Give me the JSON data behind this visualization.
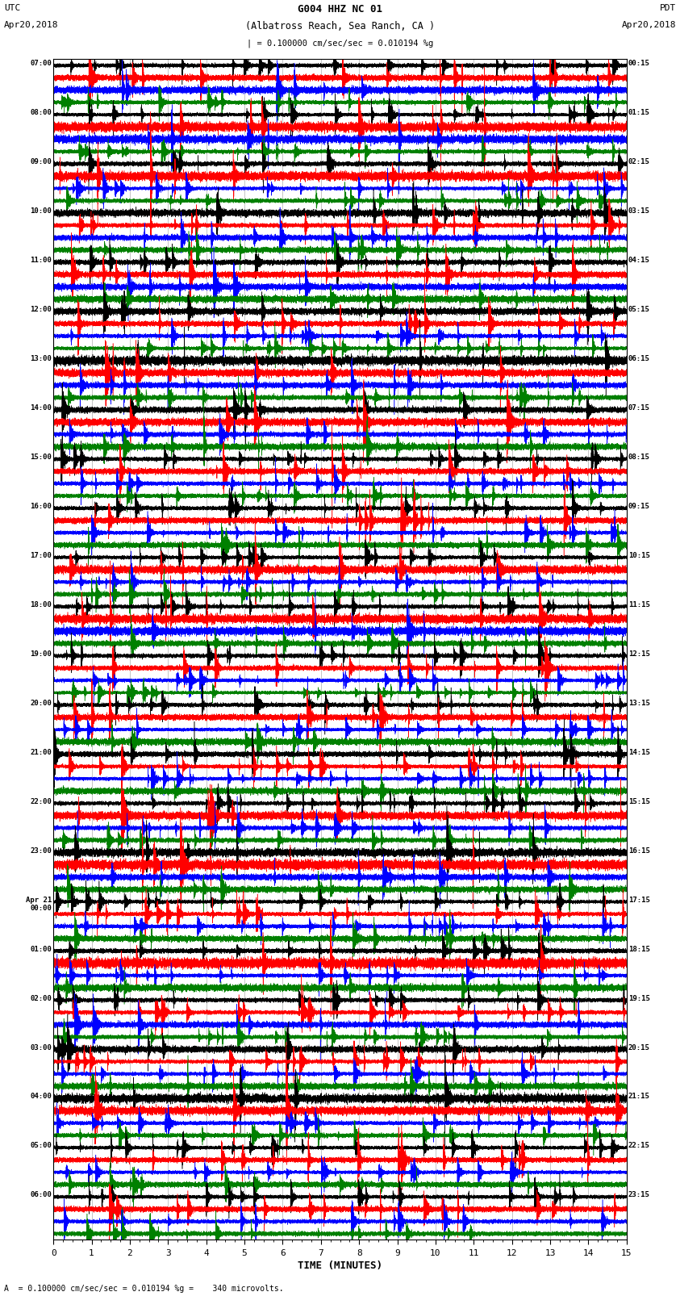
{
  "title_line1": "G004 HHZ NC 01",
  "title_line2": "(Albatross Reach, Sea Ranch, CA )",
  "scale_text": "= 0.100000 cm/sec/sec = 0.010194 %g",
  "bottom_scale_text": "A  = 0.100000 cm/sec/sec = 0.010194 %g =    340 microvolts.",
  "left_label_top": "UTC",
  "left_label_date": "Apr20,2018",
  "right_label_top": "PDT",
  "right_label_date": "Apr20,2018",
  "xlabel": "TIME (MINUTES)",
  "left_times": [
    "07:00",
    "08:00",
    "09:00",
    "10:00",
    "11:00",
    "12:00",
    "13:00",
    "14:00",
    "15:00",
    "16:00",
    "17:00",
    "18:00",
    "19:00",
    "20:00",
    "21:00",
    "22:00",
    "23:00",
    "Apr 21\n00:00",
    "01:00",
    "02:00",
    "03:00",
    "04:00",
    "05:00",
    "06:00"
  ],
  "right_times": [
    "00:15",
    "01:15",
    "02:15",
    "03:15",
    "04:15",
    "05:15",
    "06:15",
    "07:15",
    "08:15",
    "09:15",
    "10:15",
    "11:15",
    "12:15",
    "13:15",
    "14:15",
    "15:15",
    "16:15",
    "17:15",
    "18:15",
    "19:15",
    "20:15",
    "21:15",
    "22:15",
    "23:15"
  ],
  "colors": [
    "black",
    "red",
    "blue",
    "green"
  ],
  "n_rows": 24,
  "n_traces_per_row": 4,
  "minutes": 15,
  "sample_rate": 100,
  "background_color": "white",
  "grid_color": "#999999",
  "fig_width": 8.5,
  "fig_height": 16.13
}
